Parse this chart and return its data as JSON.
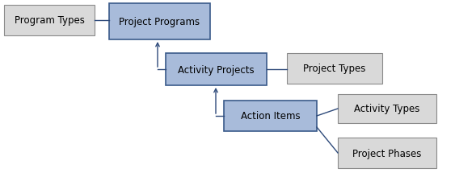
{
  "fig_width": 5.63,
  "fig_height": 2.26,
  "dpi": 100,
  "background_color": "#ffffff",
  "blue_fill": "#a8bbda",
  "blue_edge": "#3a5a8a",
  "gray_fill": "#d9d9d9",
  "gray_edge": "#8a8a8a",
  "line_color": "#2e4a7a",
  "font_size": 8.5,
  "boxes": [
    {
      "label": "Program Types",
      "xp": 5,
      "yp": 7,
      "wp": 112,
      "hp": 38,
      "style": "gray"
    },
    {
      "label": "Project Programs",
      "xp": 135,
      "yp": 5,
      "wp": 125,
      "hp": 45,
      "style": "blue"
    },
    {
      "label": "Activity Projects",
      "xp": 205,
      "yp": 67,
      "wp": 125,
      "hp": 40,
      "style": "blue"
    },
    {
      "label": "Project Types",
      "xp": 355,
      "yp": 67,
      "wp": 118,
      "hp": 38,
      "style": "gray"
    },
    {
      "label": "Action Items",
      "xp": 277,
      "yp": 126,
      "wp": 115,
      "hp": 38,
      "style": "blue"
    },
    {
      "label": "Activity Types",
      "xp": 418,
      "yp": 118,
      "wp": 122,
      "hp": 36,
      "style": "gray"
    },
    {
      "label": "Project Phases",
      "xp": 418,
      "yp": 172,
      "wp": 122,
      "hp": 38,
      "style": "gray"
    }
  ],
  "lw_line": 1.0,
  "arrow_mutation_scale": 8
}
